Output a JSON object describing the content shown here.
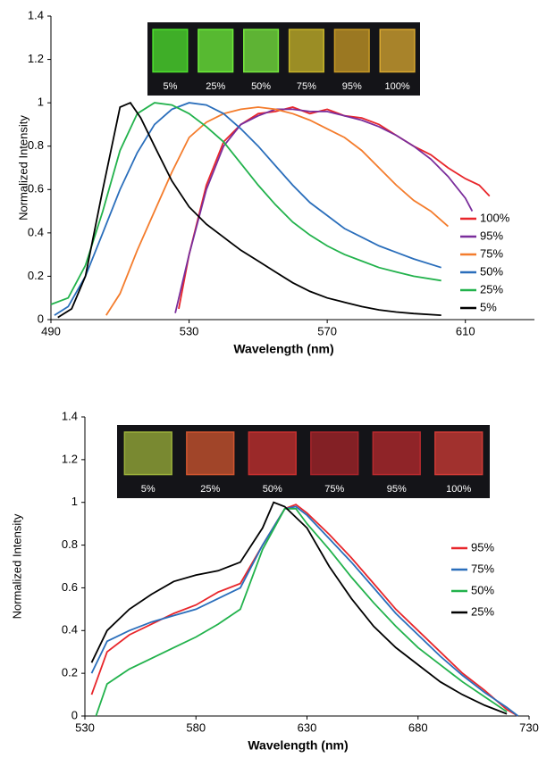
{
  "chart_data": [
    {
      "type": "line",
      "x_label": "Wavelength (nm)",
      "y_label": "Normalized Intensity",
      "xlim": [
        490,
        630
      ],
      "xticks": [
        490,
        530,
        570,
        610
      ],
      "ylim": [
        0,
        1.4
      ],
      "yticks": [
        0,
        0.2,
        0.4,
        0.6,
        0.8,
        1,
        1.2,
        1.4
      ],
      "inset_labels": [
        "5%",
        "25%",
        "50%",
        "75%",
        "95%",
        "100%"
      ],
      "series": [
        {
          "name": "100%",
          "color": "#e8262b",
          "x": [
            527,
            530,
            535,
            540,
            545,
            550,
            555,
            560,
            565,
            570,
            575,
            580,
            585,
            590,
            595,
            600,
            605,
            610,
            614,
            617
          ],
          "values": [
            0.05,
            0.3,
            0.62,
            0.82,
            0.9,
            0.95,
            0.96,
            0.98,
            0.95,
            0.97,
            0.94,
            0.93,
            0.9,
            0.85,
            0.8,
            0.76,
            0.7,
            0.65,
            0.62,
            0.57
          ]
        },
        {
          "name": "95%",
          "color": "#7a2d9b",
          "x": [
            526,
            530,
            535,
            540,
            545,
            550,
            555,
            560,
            565,
            570,
            575,
            580,
            585,
            590,
            595,
            600,
            605,
            610,
            612
          ],
          "values": [
            0.03,
            0.3,
            0.6,
            0.8,
            0.9,
            0.94,
            0.97,
            0.97,
            0.96,
            0.96,
            0.94,
            0.92,
            0.89,
            0.85,
            0.8,
            0.74,
            0.66,
            0.56,
            0.5
          ]
        },
        {
          "name": "75%",
          "color": "#f47c2c",
          "x": [
            506,
            510,
            515,
            520,
            525,
            530,
            535,
            540,
            545,
            550,
            555,
            560,
            565,
            570,
            575,
            580,
            585,
            590,
            595,
            600,
            605
          ],
          "values": [
            0.02,
            0.12,
            0.32,
            0.5,
            0.68,
            0.84,
            0.91,
            0.95,
            0.97,
            0.98,
            0.97,
            0.95,
            0.92,
            0.88,
            0.84,
            0.78,
            0.7,
            0.62,
            0.55,
            0.5,
            0.43
          ]
        },
        {
          "name": "50%",
          "color": "#2a6ebb",
          "x": [
            491,
            495,
            500,
            505,
            510,
            515,
            520,
            525,
            530,
            535,
            540,
            545,
            550,
            555,
            560,
            565,
            570,
            575,
            580,
            585,
            590,
            595,
            603
          ],
          "values": [
            0.02,
            0.06,
            0.2,
            0.4,
            0.6,
            0.77,
            0.9,
            0.97,
            1.0,
            0.99,
            0.95,
            0.88,
            0.8,
            0.71,
            0.62,
            0.54,
            0.48,
            0.42,
            0.38,
            0.34,
            0.31,
            0.28,
            0.24
          ]
        },
        {
          "name": "25%",
          "color": "#22b24c",
          "x": [
            490,
            495,
            500,
            505,
            510,
            515,
            520,
            525,
            530,
            535,
            540,
            545,
            550,
            555,
            560,
            565,
            570,
            575,
            580,
            585,
            590,
            595,
            603
          ],
          "values": [
            0.07,
            0.1,
            0.25,
            0.5,
            0.78,
            0.95,
            1.0,
            0.99,
            0.95,
            0.89,
            0.82,
            0.72,
            0.62,
            0.53,
            0.45,
            0.39,
            0.34,
            0.3,
            0.27,
            0.24,
            0.22,
            0.2,
            0.18
          ]
        },
        {
          "name": "5%",
          "color": "#000000",
          "x": [
            492,
            496,
            500,
            505,
            510,
            513,
            516,
            520,
            525,
            530,
            535,
            540,
            545,
            550,
            555,
            560,
            565,
            570,
            575,
            580,
            585,
            590,
            595,
            603
          ],
          "values": [
            0.01,
            0.05,
            0.2,
            0.6,
            0.98,
            1.0,
            0.93,
            0.8,
            0.64,
            0.52,
            0.44,
            0.38,
            0.32,
            0.27,
            0.22,
            0.17,
            0.13,
            0.1,
            0.08,
            0.06,
            0.045,
            0.035,
            0.028,
            0.02
          ]
        }
      ]
    },
    {
      "type": "line",
      "x_label": "Wavelength (nm)",
      "y_label": "Normalized Intensity",
      "xlim": [
        530,
        730
      ],
      "xticks": [
        530,
        580,
        630,
        680,
        730
      ],
      "ylim": [
        0,
        1.4
      ],
      "yticks": [
        0,
        0.2,
        0.4,
        0.6,
        0.8,
        1,
        1.2,
        1.4
      ],
      "inset_labels": [
        "5%",
        "25%",
        "50%",
        "75%",
        "95%",
        "100%"
      ],
      "series": [
        {
          "name": "95%",
          "color": "#e8262b",
          "x": [
            533,
            540,
            550,
            560,
            570,
            580,
            590,
            600,
            610,
            620,
            625,
            630,
            640,
            650,
            660,
            670,
            680,
            690,
            700,
            710,
            720,
            725
          ],
          "values": [
            0.1,
            0.3,
            0.38,
            0.43,
            0.48,
            0.52,
            0.58,
            0.62,
            0.8,
            0.97,
            0.99,
            0.95,
            0.85,
            0.74,
            0.62,
            0.5,
            0.4,
            0.3,
            0.2,
            0.12,
            0.03,
            0
          ]
        },
        {
          "name": "75%",
          "color": "#2a6ebb",
          "x": [
            533,
            540,
            550,
            560,
            570,
            580,
            590,
            600,
            610,
            620,
            625,
            630,
            640,
            650,
            660,
            670,
            680,
            690,
            700,
            710,
            720,
            725
          ],
          "values": [
            0.2,
            0.35,
            0.4,
            0.44,
            0.47,
            0.5,
            0.55,
            0.6,
            0.8,
            0.97,
            0.98,
            0.94,
            0.83,
            0.72,
            0.6,
            0.48,
            0.38,
            0.28,
            0.19,
            0.11,
            0.04,
            0
          ]
        },
        {
          "name": "50%",
          "color": "#22b24c",
          "x": [
            535,
            540,
            550,
            560,
            570,
            580,
            590,
            600,
            610,
            620,
            625,
            630,
            640,
            650,
            660,
            670,
            680,
            690,
            700,
            710,
            720
          ],
          "values": [
            0,
            0.15,
            0.22,
            0.27,
            0.32,
            0.37,
            0.43,
            0.5,
            0.78,
            0.97,
            0.97,
            0.9,
            0.78,
            0.65,
            0.53,
            0.42,
            0.32,
            0.24,
            0.16,
            0.09,
            0.02
          ]
        },
        {
          "name": "25%",
          "color": "#000000",
          "x": [
            533,
            540,
            550,
            560,
            570,
            580,
            590,
            600,
            610,
            615,
            620,
            630,
            640,
            650,
            660,
            670,
            680,
            690,
            700,
            710,
            720
          ],
          "values": [
            0.25,
            0.4,
            0.5,
            0.57,
            0.63,
            0.66,
            0.68,
            0.72,
            0.88,
            1.0,
            0.98,
            0.88,
            0.7,
            0.55,
            0.42,
            0.32,
            0.24,
            0.16,
            0.1,
            0.05,
            0.01
          ]
        }
      ]
    }
  ]
}
